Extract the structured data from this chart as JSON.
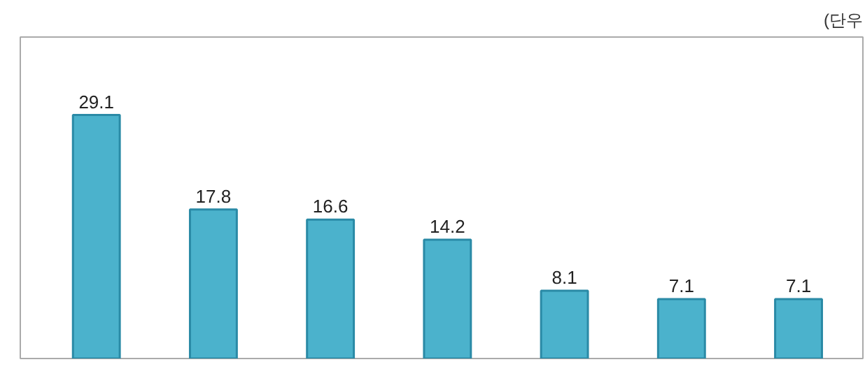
{
  "chart_data": {
    "type": "bar",
    "categories": [
      null,
      null,
      null,
      null,
      null,
      null,
      null
    ],
    "values": [
      29.1,
      17.8,
      16.6,
      14.2,
      8.1,
      7.1,
      7.1
    ],
    "color": "#4bb2cc",
    "data_labels": true,
    "grid": false,
    "tick_labels": false,
    "annotations": [
      "(단우"
    ]
  }
}
